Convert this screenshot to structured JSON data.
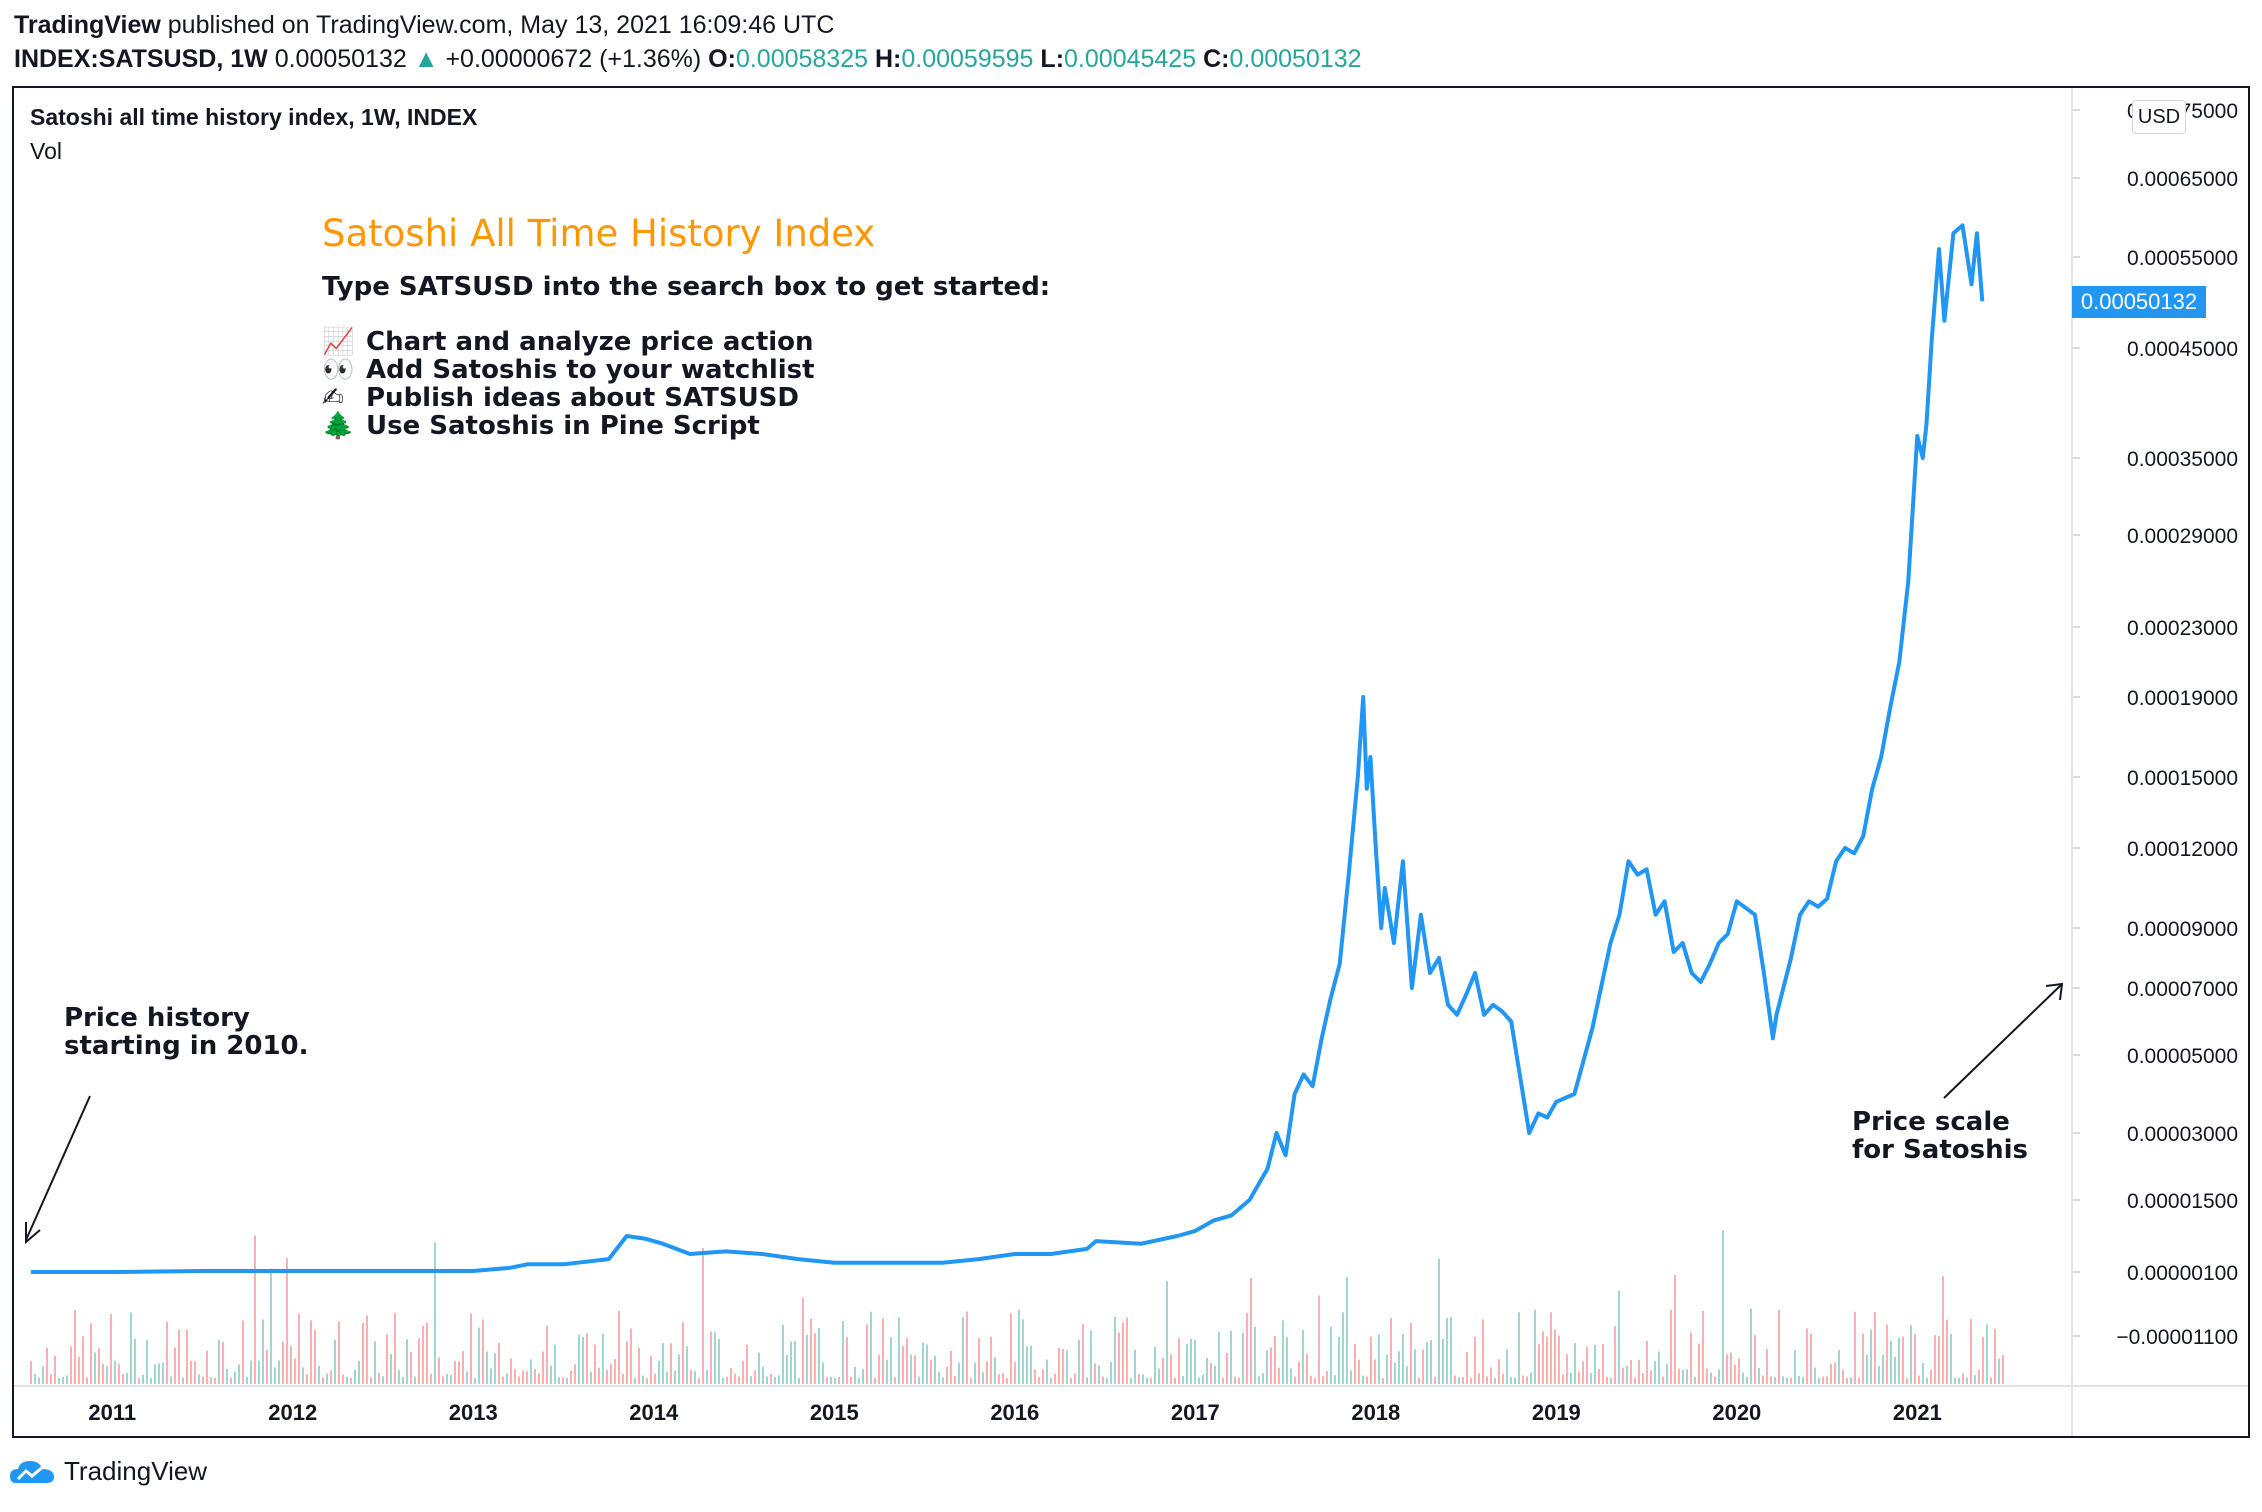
{
  "header": {
    "publisher": "TradingView",
    "published_on": "published on TradingView.com, May 13, 2021 16:09:46 UTC",
    "symbol": "INDEX:SATSUSD, 1W",
    "last": "0.00050132",
    "arrow": "▲",
    "change": "+0.00000672 (+1.36%)",
    "o_label": "O:",
    "o_value": "0.00058325",
    "h_label": "H:",
    "h_value": "0.00059595",
    "l_label": "L:",
    "l_value": "0.00045425",
    "c_label": "C:",
    "c_value": "0.00050132"
  },
  "legend": {
    "series_title": "Satoshi all time history index, 1W, INDEX",
    "volume_label": "Vol"
  },
  "notes": {
    "title": "Satoshi All Time History Index",
    "subtitle": "Type SATSUSD into the search box to get started:",
    "items": [
      {
        "icon": "📈",
        "text": "Chart and analyze price action"
      },
      {
        "icon": "👀",
        "text": "Add Satoshis to your watchlist"
      },
      {
        "icon": "✍",
        "text": "Publish ideas about SATSUSD"
      },
      {
        "icon": "🌲",
        "text": "Use Satoshis in Pine Script"
      }
    ],
    "left_line1": "Price history",
    "left_line2": "starting in 2010.",
    "right_line1": "Price scale",
    "right_line2": "for Satoshis"
  },
  "price_axis": {
    "currency_button": "USD",
    "last_price_tag": "0.00050132"
  },
  "footer": {
    "brand": "TradingView"
  },
  "colors": {
    "line": "#2196f3",
    "up": "#26a69a",
    "down": "#ef5350",
    "title": "#ff9800"
  },
  "chart_data": {
    "type": "line",
    "title": "Satoshi all time history index, 1W, INDEX",
    "x_ticks": [
      "2011",
      "2012",
      "2013",
      "2014",
      "2015",
      "2016",
      "2017",
      "2018",
      "2019",
      "2020",
      "2021"
    ],
    "y_ticks": [
      "0.00075000",
      "0.00065000",
      "0.00055000",
      "0.00045000",
      "0.00035000",
      "0.00029000",
      "0.00023000",
      "0.00019000",
      "0.00015000",
      "0.00012000",
      "0.00009000",
      "0.00007000",
      "0.00005000",
      "0.00003000",
      "0.00001500",
      "0.00000100",
      "−0.00001100"
    ],
    "y_tick_values": [
      0.00075,
      0.00065,
      0.00055,
      0.00045,
      0.00035,
      0.00029,
      0.00023,
      0.00019,
      0.00015,
      0.00012,
      9e-05,
      7e-05,
      5e-05,
      3e-05,
      1.5e-05,
      1e-06,
      -1.1e-05
    ],
    "scale": "non-linear (TradingView custom scale)",
    "series": [
      {
        "name": "SATSUSD",
        "x": [
          2010.55,
          2011.0,
          2011.5,
          2012.0,
          2012.5,
          2013.0,
          2013.2,
          2013.3,
          2013.5,
          2013.75,
          2013.85,
          2013.95,
          2014.05,
          2014.2,
          2014.4,
          2014.6,
          2014.8,
          2015.0,
          2015.3,
          2015.6,
          2015.8,
          2016.0,
          2016.2,
          2016.4,
          2016.45,
          2016.7,
          2016.9,
          2017.0,
          2017.1,
          2017.2,
          2017.3,
          2017.4,
          2017.45,
          2017.5,
          2017.55,
          2017.6,
          2017.65,
          2017.7,
          2017.75,
          2017.8,
          2017.85,
          2017.9,
          2017.93,
          2017.95,
          2017.97,
          2018.0,
          2018.03,
          2018.05,
          2018.1,
          2018.15,
          2018.2,
          2018.25,
          2018.3,
          2018.35,
          2018.4,
          2018.45,
          2018.5,
          2018.55,
          2018.6,
          2018.65,
          2018.7,
          2018.75,
          2018.85,
          2018.9,
          2018.95,
          2019.0,
          2019.1,
          2019.2,
          2019.3,
          2019.35,
          2019.4,
          2019.45,
          2019.5,
          2019.55,
          2019.6,
          2019.65,
          2019.7,
          2019.75,
          2019.8,
          2019.85,
          2019.9,
          2019.95,
          2020.0,
          2020.1,
          2020.15,
          2020.2,
          2020.22,
          2020.3,
          2020.35,
          2020.4,
          2020.45,
          2020.5,
          2020.55,
          2020.6,
          2020.65,
          2020.7,
          2020.75,
          2020.8,
          2020.85,
          2020.9,
          2020.95,
          2021.0,
          2021.03,
          2021.05,
          2021.08,
          2021.12,
          2021.15,
          2021.2,
          2021.25,
          2021.3,
          2021.33,
          2021.36
        ],
        "values": [
          1e-06,
          1e-06,
          1.2e-06,
          1.2e-06,
          1.2e-06,
          1.2e-06,
          1.8e-06,
          2.5e-06,
          2.5e-06,
          3.5e-06,
          8e-06,
          7.5e-06,
          6.5e-06,
          4.5e-06,
          5e-06,
          4.5e-06,
          3.5e-06,
          2.8e-06,
          2.8e-06,
          2.8e-06,
          3.5e-06,
          4.5e-06,
          4.5e-06,
          5.5e-06,
          7e-06,
          6.5e-06,
          8e-06,
          9e-06,
          1.1e-05,
          1.2e-05,
          1.5e-05,
          2.2e-05,
          3e-05,
          2.5e-05,
          4e-05,
          4.5e-05,
          4.2e-05,
          5.5e-05,
          6.7e-05,
          7.8e-05,
          0.00011,
          0.00015,
          0.00019,
          0.000145,
          0.00016,
          0.00012,
          9e-05,
          0.000105,
          8.5e-05,
          0.000115,
          7e-05,
          9.5e-05,
          7.5e-05,
          8e-05,
          6.5e-05,
          6.2e-05,
          6.8e-05,
          7.5e-05,
          6.2e-05,
          6.5e-05,
          6.3e-05,
          6e-05,
          3e-05,
          3.5e-05,
          3.4e-05,
          3.8e-05,
          4e-05,
          5.8e-05,
          8.5e-05,
          9.5e-05,
          0.000115,
          0.00011,
          0.000112,
          9.5e-05,
          0.0001,
          8.2e-05,
          8.5e-05,
          7.5e-05,
          7.2e-05,
          7.8e-05,
          8.5e-05,
          8.8e-05,
          0.0001,
          9.5e-05,
          7.5e-05,
          5.5e-05,
          6.2e-05,
          8e-05,
          9.5e-05,
          0.0001,
          9.8e-05,
          0.000101,
          0.000115,
          0.00012,
          0.000118,
          0.000125,
          0.000145,
          0.00016,
          0.000185,
          0.00021,
          0.00026,
          0.00037,
          0.00035,
          0.00038,
          0.00046,
          0.00056,
          0.00048,
          0.00058,
          0.00059,
          0.00052,
          0.00058,
          0.00050132
        ]
      }
    ]
  }
}
